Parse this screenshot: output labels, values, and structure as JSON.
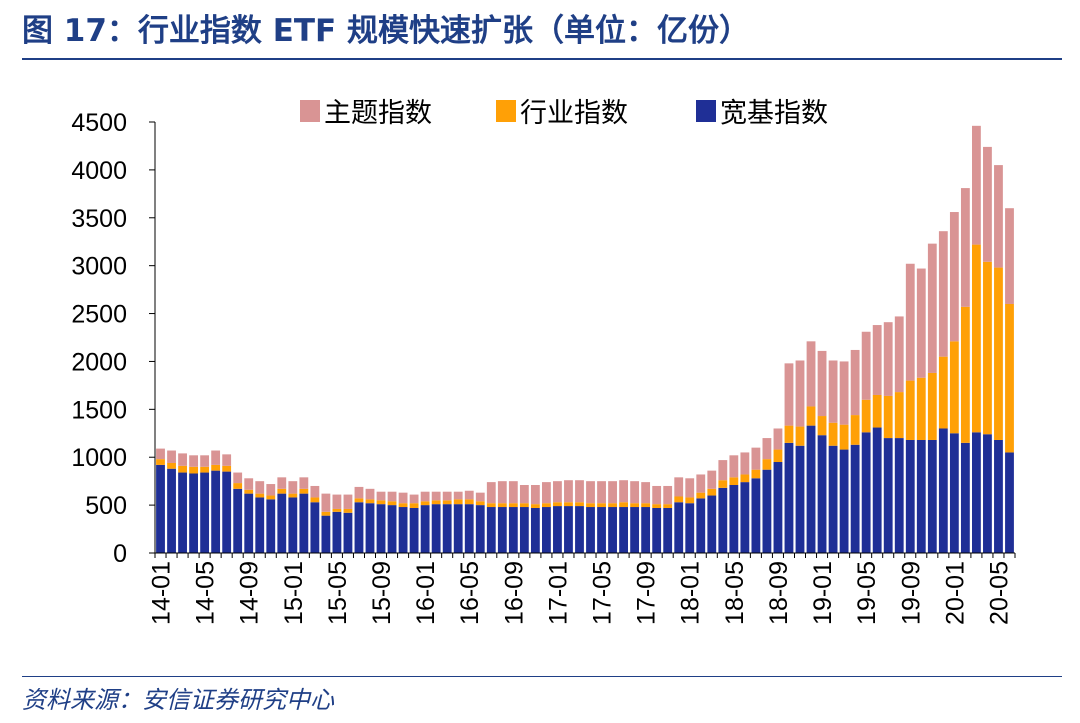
{
  "header": {
    "figure_label": "图 17：",
    "title": "行业指数 ETF 规模快速扩张（单位：亿份）"
  },
  "footer": {
    "source": "资料来源：安信证券研究中心"
  },
  "chart_data": {
    "type": "bar",
    "stacked": true,
    "title": "行业指数 ETF 规模快速扩张（单位：亿份）",
    "xlabel": "",
    "ylabel": "",
    "ylim": [
      0,
      4500
    ],
    "y_ticks": [
      0,
      500,
      1000,
      1500,
      2000,
      2500,
      3000,
      3500,
      4000,
      4500
    ],
    "grid": false,
    "legend_position": "top-center",
    "x_tick_labels": [
      "14-01",
      "14-05",
      "14-09",
      "15-01",
      "15-05",
      "15-09",
      "16-01",
      "16-05",
      "16-09",
      "17-01",
      "17-05",
      "17-09",
      "18-01",
      "18-05",
      "18-09",
      "19-01",
      "19-05",
      "19-09",
      "20-01",
      "20-05"
    ],
    "x_tick_label_step": 4,
    "categories": [
      "14-01",
      "14-02",
      "14-03",
      "14-04",
      "14-05",
      "14-06",
      "14-07",
      "14-08",
      "14-09",
      "14-10",
      "14-11",
      "14-12",
      "15-01",
      "15-02",
      "15-03",
      "15-04",
      "15-05",
      "15-06",
      "15-07",
      "15-08",
      "15-09",
      "15-10",
      "15-11",
      "15-12",
      "16-01",
      "16-02",
      "16-03",
      "16-04",
      "16-05",
      "16-06",
      "16-07",
      "16-08",
      "16-09",
      "16-10",
      "16-11",
      "16-12",
      "17-01",
      "17-02",
      "17-03",
      "17-04",
      "17-05",
      "17-06",
      "17-07",
      "17-08",
      "17-09",
      "17-10",
      "17-11",
      "17-12",
      "18-01",
      "18-02",
      "18-03",
      "18-04",
      "18-05",
      "18-06",
      "18-07",
      "18-08",
      "18-09",
      "18-10",
      "18-11",
      "18-12",
      "19-01",
      "19-02",
      "19-03",
      "19-04",
      "19-05",
      "19-06",
      "19-07",
      "19-08",
      "19-09",
      "19-10",
      "19-11",
      "19-12",
      "20-01",
      "20-02",
      "20-03",
      "20-04",
      "20-05",
      "20-06"
    ],
    "series": [
      {
        "name": "宽基指数",
        "color": "#1f2f96",
        "values": [
          920,
          880,
          840,
          830,
          840,
          860,
          850,
          670,
          620,
          580,
          560,
          620,
          580,
          620,
          530,
          390,
          430,
          420,
          530,
          520,
          510,
          500,
          480,
          470,
          500,
          510,
          510,
          510,
          510,
          500,
          480,
          480,
          480,
          480,
          470,
          480,
          490,
          490,
          490,
          480,
          480,
          480,
          480,
          480,
          480,
          470,
          470,
          530,
          520,
          570,
          600,
          680,
          710,
          740,
          780,
          870,
          950,
          1150,
          1120,
          1330,
          1230,
          1120,
          1080,
          1130,
          1260,
          1310,
          1200,
          1200,
          1180,
          1180,
          1180,
          1300,
          1250,
          1150,
          1260,
          1240,
          1180,
          1050
        ]
      },
      {
        "name": "行业指数",
        "color": "#ffa006",
        "values": [
          60,
          60,
          70,
          70,
          60,
          60,
          60,
          60,
          40,
          40,
          40,
          50,
          40,
          50,
          50,
          40,
          30,
          40,
          40,
          40,
          40,
          40,
          40,
          50,
          40,
          40,
          40,
          50,
          50,
          40,
          40,
          40,
          40,
          40,
          40,
          40,
          40,
          40,
          40,
          40,
          40,
          40,
          50,
          40,
          40,
          40,
          40,
          60,
          60,
          60,
          70,
          80,
          80,
          80,
          90,
          110,
          130,
          180,
          200,
          200,
          200,
          240,
          260,
          310,
          340,
          340,
          440,
          480,
          620,
          650,
          700,
          750,
          960,
          1420,
          1960,
          1800,
          1800,
          1550
        ]
      },
      {
        "name": "主题指数",
        "color": "#d99494",
        "values": [
          110,
          130,
          130,
          120,
          120,
          150,
          120,
          110,
          120,
          130,
          120,
          120,
          130,
          120,
          120,
          190,
          150,
          150,
          120,
          110,
          90,
          100,
          110,
          90,
          100,
          90,
          90,
          80,
          90,
          90,
          220,
          230,
          230,
          190,
          200,
          220,
          220,
          230,
          230,
          230,
          230,
          230,
          230,
          230,
          220,
          190,
          190,
          200,
          200,
          190,
          190,
          210,
          230,
          230,
          230,
          220,
          220,
          650,
          690,
          680,
          680,
          650,
          660,
          680,
          710,
          730,
          770,
          790,
          1220,
          1140,
          1350,
          1310,
          1350,
          1240,
          1240,
          1200,
          1070,
          1000
        ]
      }
    ]
  }
}
